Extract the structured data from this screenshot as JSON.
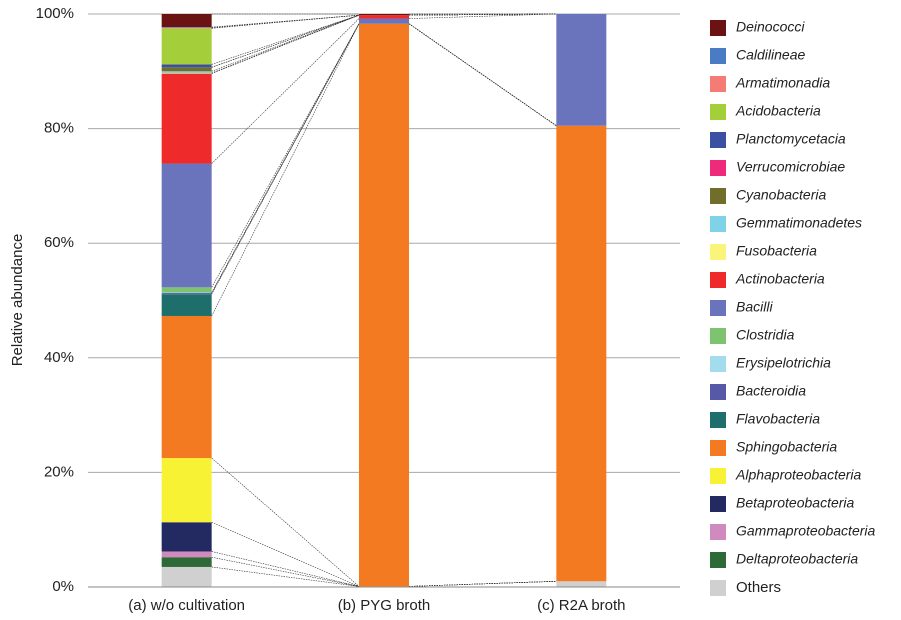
{
  "chart_data": {
    "type": "stacked_bar",
    "ylabel": "Relative abundance",
    "categories": [
      "(a) w/o cultivation",
      "(b) PYG broth",
      "(c) R2A broth"
    ],
    "ylim": [
      0,
      100
    ],
    "yticks": [
      {
        "value": 0,
        "label": "0%"
      },
      {
        "value": 20,
        "label": "20%"
      },
      {
        "value": 40,
        "label": "40%"
      },
      {
        "value": 60,
        "label": "60%"
      },
      {
        "value": 80,
        "label": "80%"
      },
      {
        "value": 100,
        "label": "100%"
      }
    ],
    "grid": true,
    "legend": "right",
    "series": [
      {
        "name": "Others",
        "color": "#d0d0d0",
        "values": [
          3.5,
          0.1,
          1.0
        ]
      },
      {
        "name": "Deltaproteobacteria",
        "color": "#2d6a35",
        "values": [
          1.7,
          0,
          0
        ]
      },
      {
        "name": "Gammaproteobacteria",
        "color": "#d08ac0",
        "values": [
          1.0,
          0,
          0
        ]
      },
      {
        "name": "Betaproteobacteria",
        "color": "#232a62",
        "values": [
          5.1,
          0,
          0
        ]
      },
      {
        "name": "Alphaproteobacteria",
        "color": "#f8f235",
        "values": [
          11.2,
          0,
          0
        ]
      },
      {
        "name": "Sphingobacteria",
        "color": "#f47a22",
        "values": [
          24.8,
          98.2,
          79.5
        ]
      },
      {
        "name": "Flavobacteria",
        "color": "#1e6f6c",
        "values": [
          3.8,
          0,
          0
        ]
      },
      {
        "name": "Bacteroidia",
        "color": "#5658a8",
        "values": [
          0.2,
          0,
          0
        ]
      },
      {
        "name": "Erysipelotrichia",
        "color": "#a3dcec",
        "values": [
          0.1,
          0,
          0
        ]
      },
      {
        "name": "Clostridia",
        "color": "#7dc370",
        "values": [
          0.9,
          0,
          0
        ]
      },
      {
        "name": "Bacilli",
        "color": "#6a74bd",
        "values": [
          21.6,
          0.9,
          19.5
        ]
      },
      {
        "name": "Actinobacteria",
        "color": "#ee2a2a",
        "values": [
          15.7,
          0.6,
          0
        ]
      },
      {
        "name": "Fusobacteria",
        "color": "#faf57a",
        "values": [
          0.1,
          0,
          0
        ]
      },
      {
        "name": "Gemmatimonadetes",
        "color": "#7fd3e6",
        "values": [
          0.3,
          0,
          0
        ]
      },
      {
        "name": "Cyanobacteria",
        "color": "#6f6e2a",
        "values": [
          0.7,
          0,
          0
        ]
      },
      {
        "name": "Verrucomicrobiae",
        "color": "#ee2b7a",
        "values": [
          0,
          0,
          0
        ]
      },
      {
        "name": "Planctomycetacia",
        "color": "#3b4fa3",
        "values": [
          0.5,
          0,
          0
        ]
      },
      {
        "name": "Acidobacteria",
        "color": "#a4cf3a",
        "values": [
          6.3,
          0,
          0
        ]
      },
      {
        "name": "Armatimonadia",
        "color": "#f47c74",
        "values": [
          0.1,
          0,
          0
        ]
      },
      {
        "name": "Caldilineae",
        "color": "#4a7cc4",
        "values": [
          0.1,
          0,
          0
        ]
      },
      {
        "name": "Deinococci",
        "color": "#6b1212",
        "values": [
          2.3,
          0.2,
          0
        ]
      }
    ]
  }
}
